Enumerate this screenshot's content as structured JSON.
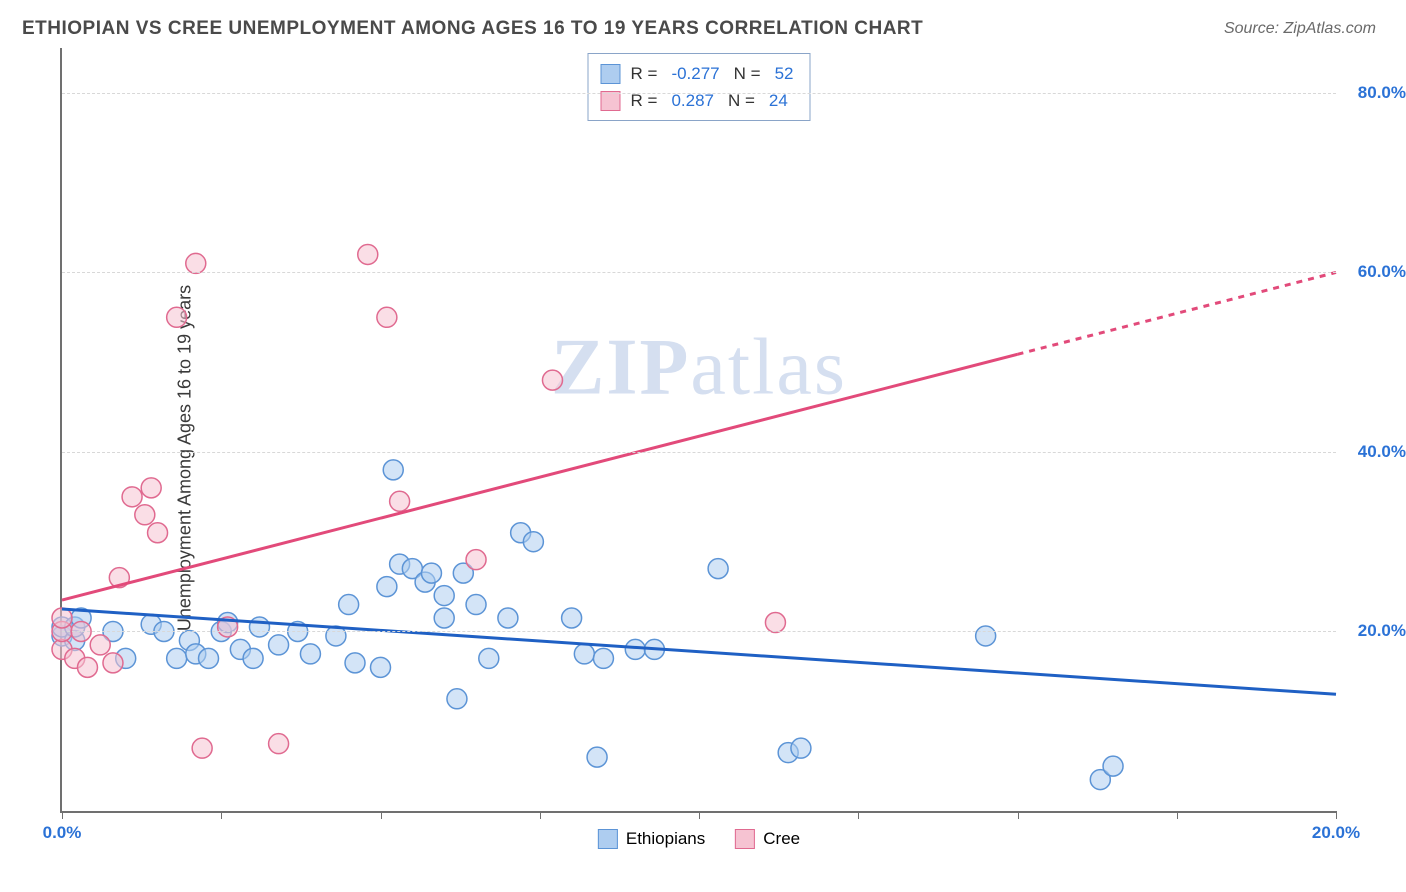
{
  "header": {
    "title": "ETHIOPIAN VS CREE UNEMPLOYMENT AMONG AGES 16 TO 19 YEARS CORRELATION CHART",
    "source": "Source: ZipAtlas.com"
  },
  "chart": {
    "type": "scatter",
    "y_axis_label": "Unemployment Among Ages 16 to 19 years",
    "x_axis_label": "",
    "background_color": "#ffffff",
    "grid_color": "#d8d8d8",
    "axis_color": "#707070",
    "xlim": [
      0,
      20
    ],
    "ylim": [
      0,
      85
    ],
    "y_ticks": [
      {
        "v": 20,
        "label": "20.0%",
        "color": "#2b72d6"
      },
      {
        "v": 40,
        "label": "40.0%",
        "color": "#2b72d6"
      },
      {
        "v": 60,
        "label": "60.0%",
        "color": "#2b72d6"
      },
      {
        "v": 80,
        "label": "80.0%",
        "color": "#2b72d6"
      }
    ],
    "x_ticks": [
      {
        "v": 0,
        "label": "0.0%",
        "color": "#2b72d6"
      },
      {
        "v": 2.5,
        "label": ""
      },
      {
        "v": 5,
        "label": ""
      },
      {
        "v": 7.5,
        "label": ""
      },
      {
        "v": 10,
        "label": ""
      },
      {
        "v": 12.5,
        "label": ""
      },
      {
        "v": 15,
        "label": ""
      },
      {
        "v": 17.5,
        "label": ""
      },
      {
        "v": 20,
        "label": "20.0%",
        "color": "#2b72d6"
      }
    ],
    "watermark": {
      "bold": "ZIP",
      "rest": "atlas"
    },
    "marker_radius": 10,
    "marker_stroke_width": 1.5,
    "line_width": 3,
    "series": [
      {
        "name": "Ethiopians",
        "fill": "#aecdf0",
        "fill_opacity": 0.55,
        "stroke": "#5c94d6",
        "line_color": "#1f60c4",
        "trend": {
          "x1": 0,
          "y1": 22.5,
          "x2": 20,
          "y2": 13,
          "dashed_from_x": null
        },
        "legend_label": "Ethiopians",
        "points": [
          [
            0.0,
            19.5
          ],
          [
            0.0,
            20.5
          ],
          [
            0.2,
            19.0
          ],
          [
            0.2,
            20.5
          ],
          [
            0.3,
            21.5
          ],
          [
            0.8,
            20.0
          ],
          [
            1.0,
            17.0
          ],
          [
            1.4,
            20.8
          ],
          [
            1.6,
            20.0
          ],
          [
            1.8,
            17.0
          ],
          [
            2.0,
            19.0
          ],
          [
            2.1,
            17.5
          ],
          [
            2.3,
            17.0
          ],
          [
            2.5,
            20.0
          ],
          [
            2.6,
            21.0
          ],
          [
            2.8,
            18.0
          ],
          [
            3.0,
            17.0
          ],
          [
            3.1,
            20.5
          ],
          [
            3.4,
            18.5
          ],
          [
            3.7,
            20.0
          ],
          [
            3.9,
            17.5
          ],
          [
            4.3,
            19.5
          ],
          [
            4.5,
            23.0
          ],
          [
            4.6,
            16.5
          ],
          [
            5.0,
            16.0
          ],
          [
            5.1,
            25.0
          ],
          [
            5.2,
            38.0
          ],
          [
            5.3,
            27.5
          ],
          [
            5.5,
            27.0
          ],
          [
            5.7,
            25.5
          ],
          [
            5.8,
            26.5
          ],
          [
            6.0,
            24.0
          ],
          [
            6.0,
            21.5
          ],
          [
            6.2,
            12.5
          ],
          [
            6.3,
            26.5
          ],
          [
            6.5,
            23.0
          ],
          [
            6.7,
            17.0
          ],
          [
            7.0,
            21.5
          ],
          [
            7.2,
            31.0
          ],
          [
            7.4,
            30.0
          ],
          [
            8.0,
            21.5
          ],
          [
            8.2,
            17.5
          ],
          [
            8.4,
            6.0
          ],
          [
            8.5,
            17.0
          ],
          [
            9.0,
            18.0
          ],
          [
            9.3,
            18.0
          ],
          [
            10.3,
            27.0
          ],
          [
            11.4,
            6.5
          ],
          [
            11.6,
            7.0
          ],
          [
            14.5,
            19.5
          ],
          [
            16.3,
            3.5
          ],
          [
            16.5,
            5.0
          ]
        ]
      },
      {
        "name": "Cree",
        "fill": "#f6c3d2",
        "fill_opacity": 0.55,
        "stroke": "#e06a90",
        "line_color": "#e24a7a",
        "trend": {
          "x1": 0,
          "y1": 23.5,
          "x2": 20,
          "y2": 60,
          "dashed_from_x": 15
        },
        "legend_label": "Cree",
        "points": [
          [
            0.0,
            18.0
          ],
          [
            0.0,
            20.0
          ],
          [
            0.0,
            21.5
          ],
          [
            0.2,
            17.0
          ],
          [
            0.3,
            20.0
          ],
          [
            0.4,
            16.0
          ],
          [
            0.6,
            18.5
          ],
          [
            0.8,
            16.5
          ],
          [
            0.9,
            26.0
          ],
          [
            1.1,
            35.0
          ],
          [
            1.3,
            33.0
          ],
          [
            1.4,
            36.0
          ],
          [
            1.5,
            31.0
          ],
          [
            1.8,
            55.0
          ],
          [
            2.1,
            61.0
          ],
          [
            2.2,
            7.0
          ],
          [
            2.6,
            20.5
          ],
          [
            3.4,
            7.5
          ],
          [
            4.8,
            62.0
          ],
          [
            5.1,
            55.0
          ],
          [
            5.3,
            34.5
          ],
          [
            6.5,
            28.0
          ],
          [
            7.7,
            48.0
          ],
          [
            11.2,
            21.0
          ]
        ]
      }
    ],
    "stats_box": {
      "border_color": "#8aa4c8",
      "rows": [
        {
          "swatch_fill": "#aecdf0",
          "swatch_stroke": "#5c94d6",
          "r_label": "R =",
          "r_val": "-0.277",
          "n_label": "N =",
          "n_val": "52"
        },
        {
          "swatch_fill": "#f6c3d2",
          "swatch_stroke": "#e06a90",
          "r_label": "R =",
          "r_val": "0.287",
          "n_label": "N =",
          "n_val": "24"
        }
      ]
    },
    "legend": [
      {
        "swatch_fill": "#aecdf0",
        "swatch_stroke": "#5c94d6",
        "label": "Ethiopians"
      },
      {
        "swatch_fill": "#f6c3d2",
        "swatch_stroke": "#e06a90",
        "label": "Cree"
      }
    ]
  }
}
